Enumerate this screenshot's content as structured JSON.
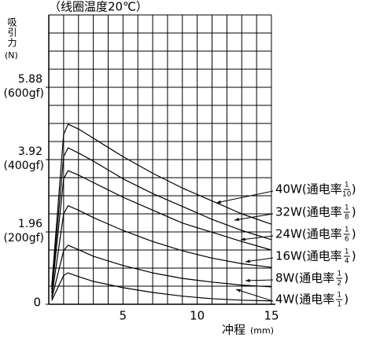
{
  "chart_data": {
    "type": "line",
    "title": "（线圈温度20℃）",
    "ylabel": "吸引力",
    "ylabel_unit": "(N)",
    "xlabel": "冲程",
    "xlabel_unit": "(mm)",
    "xlim": [
      0,
      15
    ],
    "ylim": [
      0,
      7.84
    ],
    "xticks": [
      5,
      10,
      15
    ],
    "yticks": [
      0,
      1.96,
      3.92,
      5.88
    ],
    "ytick_sublabels": [
      null,
      "(200gf)",
      "(400gf)",
      "(600gf)"
    ],
    "x_grid": [
      0,
      1,
      2,
      3,
      4,
      5,
      6,
      7,
      8,
      9,
      10,
      11,
      12,
      13,
      14,
      15
    ],
    "y_grid": [
      0,
      0.49,
      0.98,
      1.47,
      1.96,
      2.45,
      2.94,
      3.43,
      3.92,
      4.41,
      4.9,
      5.39,
      5.88,
      6.37,
      6.86,
      7.35,
      7.84
    ],
    "grid": true,
    "x": [
      0.2,
      1.0,
      1.3,
      2,
      3,
      5,
      7,
      9,
      11,
      13,
      15
    ],
    "label_close": ")",
    "series": [
      {
        "name": "40W(通电率",
        "numerator": 1,
        "denominator": 10,
        "color": "#000000",
        "values": [
          0.5,
          4.6,
          4.88,
          4.75,
          4.5,
          4.0,
          3.55,
          3.15,
          2.8,
          2.45,
          2.17
        ]
      },
      {
        "name": "32W(通电率",
        "numerator": 1,
        "denominator": 8,
        "color": "#000000",
        "values": [
          0.4,
          4.0,
          4.24,
          4.1,
          3.88,
          3.4,
          3.0,
          2.65,
          2.3,
          2.0,
          1.75
        ]
      },
      {
        "name": "24W(通电率",
        "numerator": 1,
        "denominator": 6,
        "color": "#000000",
        "values": [
          0.3,
          3.4,
          3.62,
          3.5,
          3.3,
          2.9,
          2.55,
          2.2,
          1.95,
          1.7,
          1.47
        ]
      },
      {
        "name": "16W(通电率",
        "numerator": 1,
        "denominator": 4,
        "color": "#000000",
        "values": [
          0.2,
          2.45,
          2.67,
          2.55,
          2.35,
          2.0,
          1.7,
          1.45,
          1.25,
          1.1,
          1.0
        ]
      },
      {
        "name": "8W(通电率",
        "numerator": 1,
        "denominator": 2,
        "color": "#000000",
        "values": [
          0.15,
          1.45,
          1.6,
          1.48,
          1.3,
          1.05,
          0.85,
          0.7,
          0.6,
          0.52,
          0.47
        ]
      },
      {
        "name": "4W(通电率",
        "numerator": 1,
        "denominator": 1,
        "color": "#000000",
        "values": [
          0.1,
          0.78,
          0.85,
          0.75,
          0.62,
          0.45,
          0.32,
          0.22,
          0.15,
          0.11,
          0.09
        ]
      }
    ]
  }
}
